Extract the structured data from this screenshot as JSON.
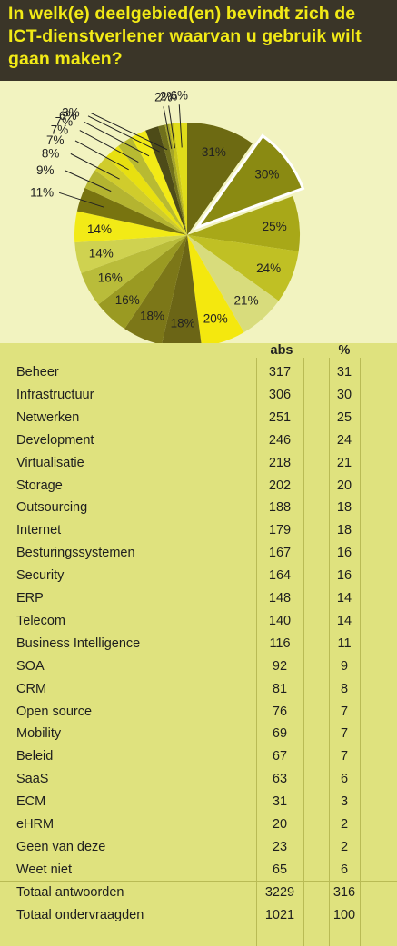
{
  "title": "In welk(e) deelgebied(en) bevindt zich de ICT-dienstverlener waarvan u gebruik wilt gaan maken?",
  "chart_data": {
    "type": "pie",
    "title": "In welk(e) deelgebied(en) bevindt zich de ICT-dienstverlener waarvan u gebruik wilt gaan maken?",
    "categories": [
      "Beheer",
      "Infrastructuur",
      "Netwerken",
      "Development",
      "Virtualisatie",
      "Storage",
      "Outsourcing",
      "Internet",
      "Besturingssystemen",
      "Security",
      "ERP",
      "Telecom",
      "Business Intelligence",
      "SOA",
      "CRM",
      "Open source",
      "Mobility",
      "Beleid",
      "SaaS",
      "ECM",
      "eHRM",
      "Geen van deze",
      "Weet niet"
    ],
    "values": [
      31,
      30,
      25,
      24,
      21,
      20,
      18,
      18,
      16,
      16,
      14,
      14,
      11,
      9,
      8,
      7,
      7,
      7,
      6,
      3,
      2,
      2,
      6
    ],
    "slice_labels": [
      "31%",
      "30%",
      "25%",
      "24%",
      "21%",
      "20%",
      "18%",
      "18%",
      "16%",
      "16%",
      "14%",
      "14%",
      "11%",
      "9%",
      "8%",
      "7%",
      "7%",
      "7%",
      "6%",
      "3%",
      "2%",
      "2%",
      "6%"
    ],
    "exploded": "Infrastructuur",
    "colors": [
      "#6d6a12",
      "#8a8a12",
      "#a8a818",
      "#c0c024",
      "#d8dc7c",
      "#f4e80e",
      "#6b6516",
      "#7c7718",
      "#9a9a22",
      "#b9bc3a",
      "#cfd250",
      "#f2ea16",
      "#787410",
      "#b4b430",
      "#d0cc2c",
      "#e8e010",
      "#b8ba32",
      "#f2ea16",
      "#4d4b18",
      "#70701c",
      "#a4a428",
      "#c8c41c",
      "#e0dc1a"
    ]
  },
  "table": {
    "headers": {
      "label": "",
      "abs": "abs",
      "pct": "%"
    },
    "rows": [
      {
        "label": "Beheer",
        "abs": "317",
        "pct": "31"
      },
      {
        "label": "Infrastructuur",
        "abs": "306",
        "pct": "30"
      },
      {
        "label": "Netwerken",
        "abs": "251",
        "pct": "25"
      },
      {
        "label": "Development",
        "abs": "246",
        "pct": "24"
      },
      {
        "label": "Virtualisatie",
        "abs": "218",
        "pct": "21"
      },
      {
        "label": "Storage",
        "abs": "202",
        "pct": "20"
      },
      {
        "label": "Outsourcing",
        "abs": "188",
        "pct": "18"
      },
      {
        "label": "Internet",
        "abs": "179",
        "pct": "18"
      },
      {
        "label": "Besturingssystemen",
        "abs": "167",
        "pct": "16"
      },
      {
        "label": "Security",
        "abs": "164",
        "pct": "16"
      },
      {
        "label": "ERP",
        "abs": "148",
        "pct": "14"
      },
      {
        "label": "Telecom",
        "abs": "140",
        "pct": "14"
      },
      {
        "label": "Business Intelligence",
        "abs": "116",
        "pct": "11"
      },
      {
        "label": "SOA",
        "abs": "92",
        "pct": "9"
      },
      {
        "label": "CRM",
        "abs": "81",
        "pct": "8"
      },
      {
        "label": "Open source",
        "abs": "76",
        "pct": "7"
      },
      {
        "label": "Mobility",
        "abs": "69",
        "pct": "7"
      },
      {
        "label": "Beleid",
        "abs": "67",
        "pct": "7"
      },
      {
        "label": "SaaS",
        "abs": "63",
        "pct": "6"
      },
      {
        "label": "ECM",
        "abs": "31",
        "pct": "3"
      },
      {
        "label": "eHRM",
        "abs": "20",
        "pct": "2"
      },
      {
        "label": "Geen van deze",
        "abs": "23",
        "pct": "2"
      },
      {
        "label": "Weet niet",
        "abs": "65",
        "pct": "6"
      }
    ],
    "totals": [
      {
        "label": "Totaal antwoorden",
        "abs": "3229",
        "pct": "316"
      },
      {
        "label": "Totaal ondervraagden",
        "abs": "1021",
        "pct": "100"
      }
    ]
  }
}
